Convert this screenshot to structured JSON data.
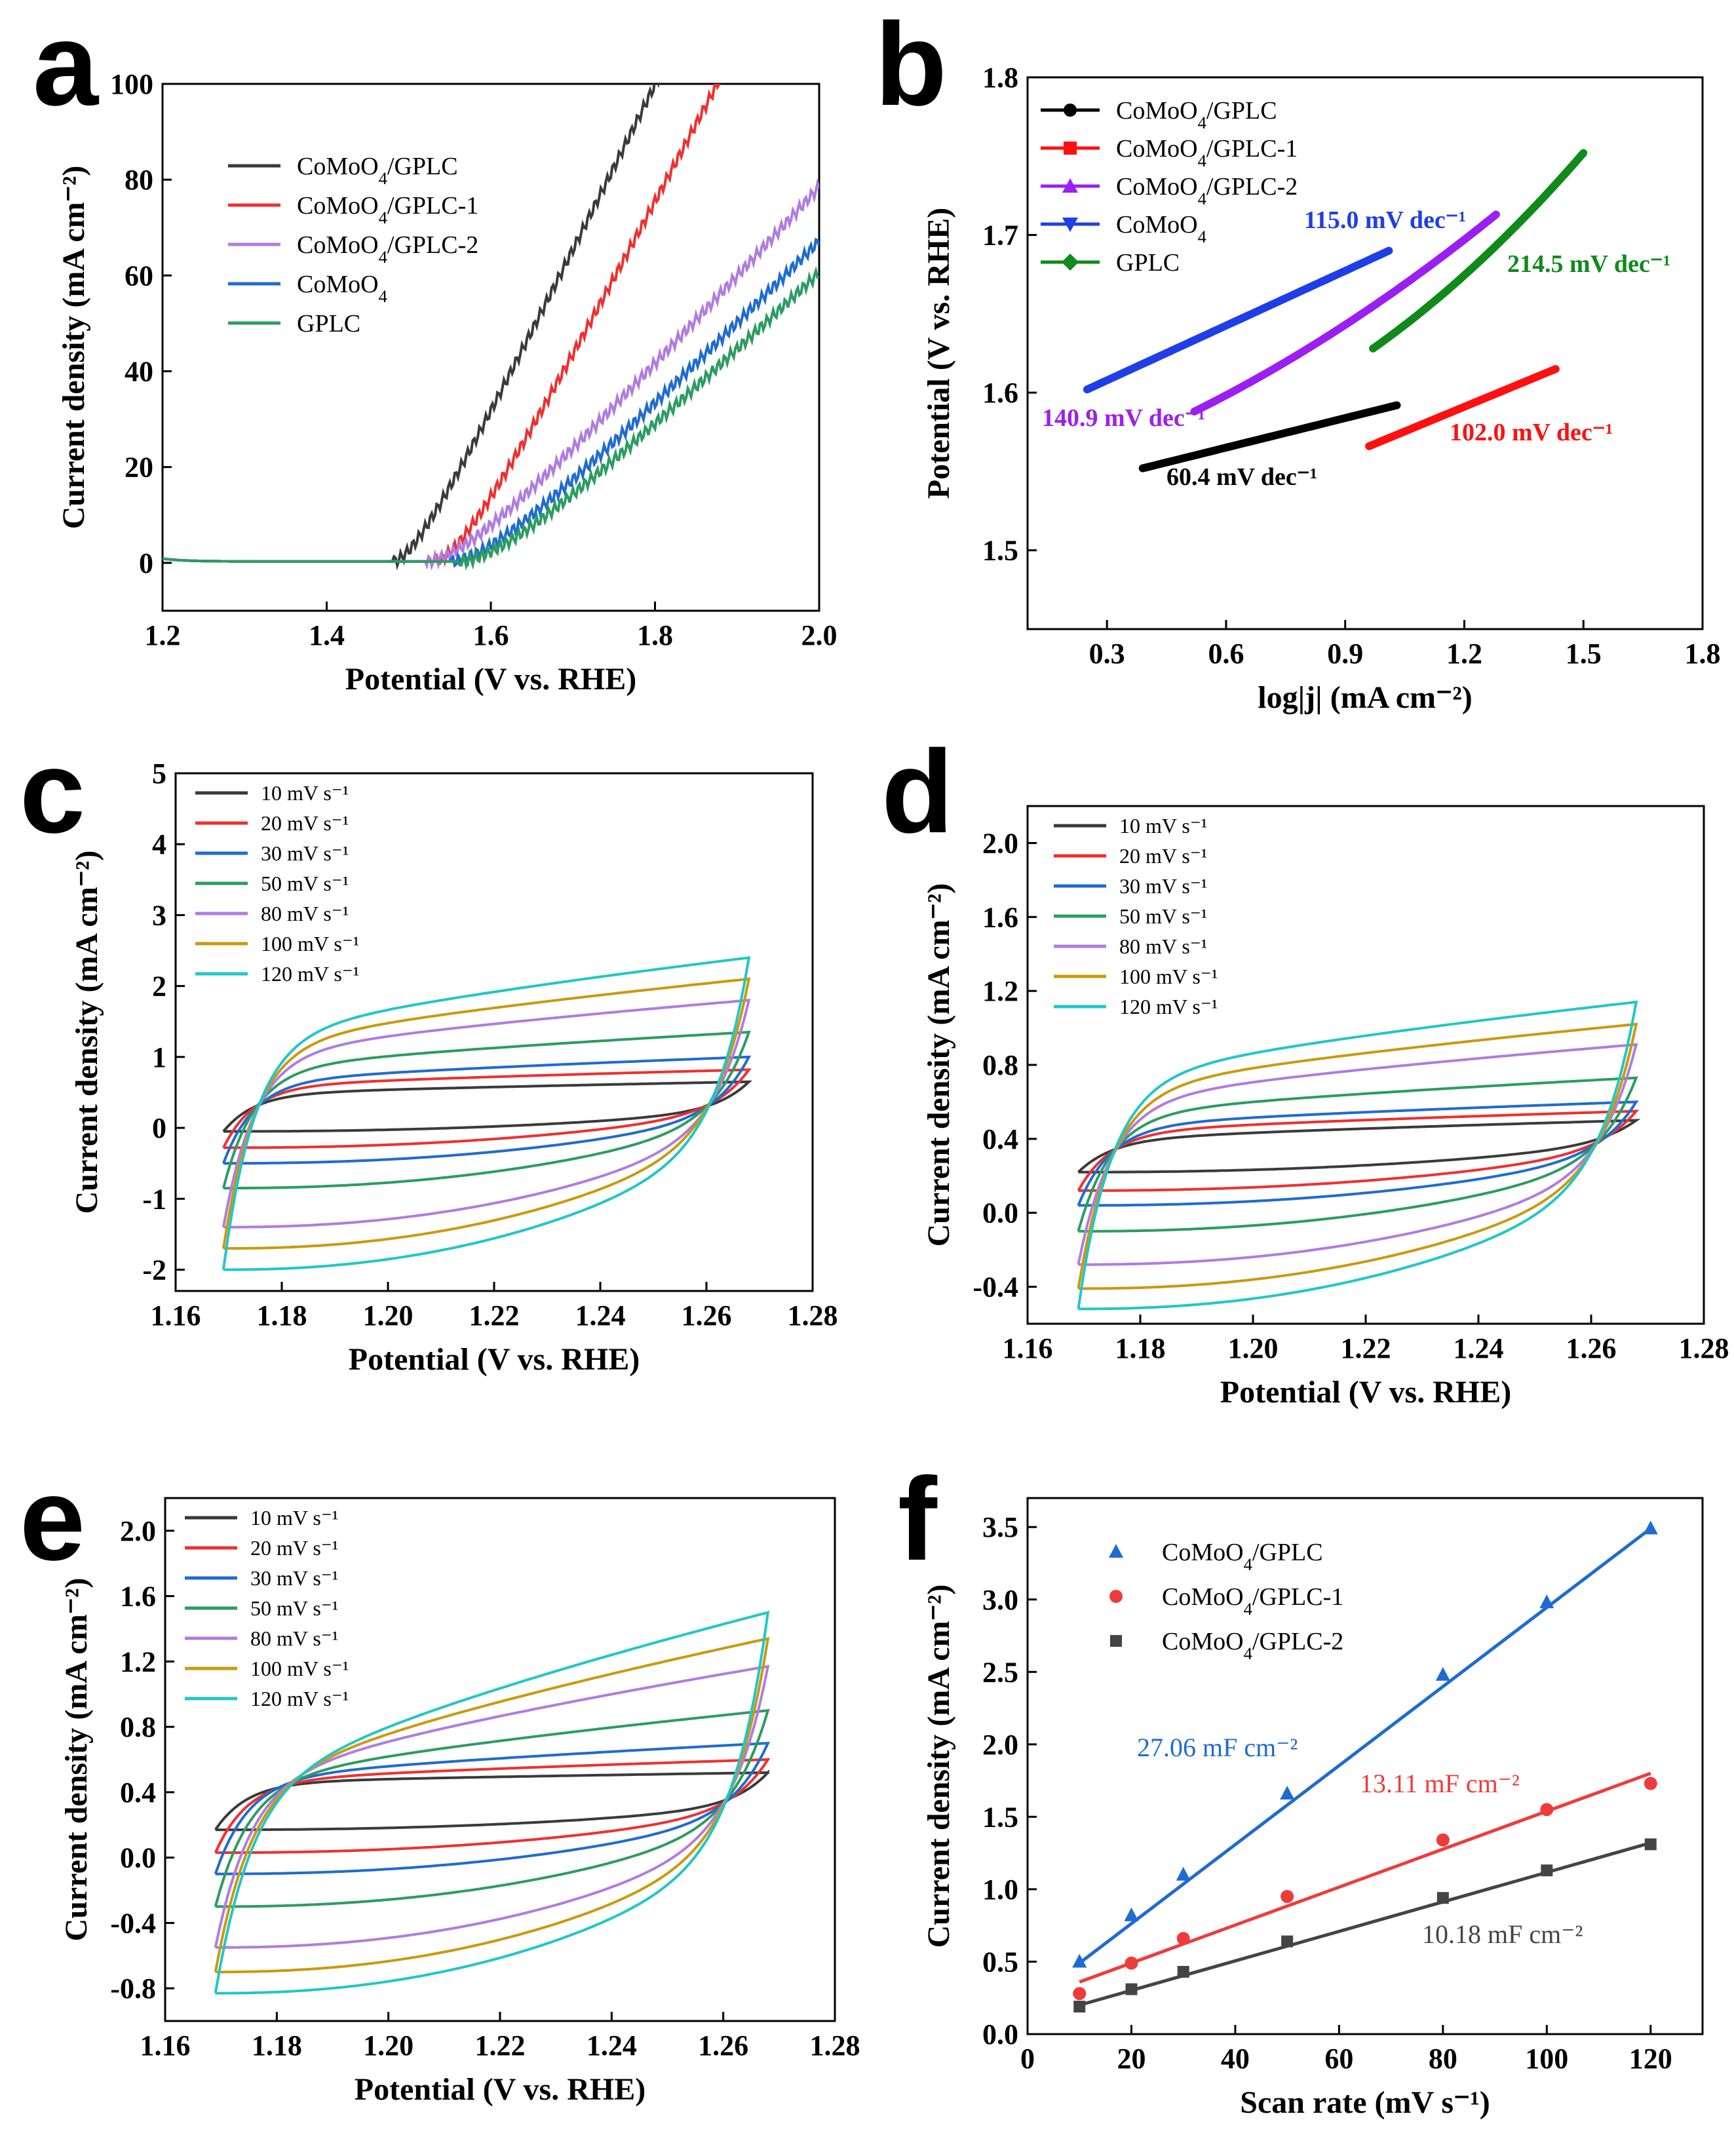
{
  "colors": {
    "black": "#3a3a3a",
    "red": "#ee3030",
    "purple": "#b07ce0",
    "blue": "#1f6bd1",
    "green": "#2c9c62",
    "gold": "#c99a0e",
    "cyan": "#22c6c6",
    "b_black": "#000000",
    "b_red": "#ff1010",
    "b_purple": "#9b1ff2",
    "b_blue": "#1f3ee8",
    "b_green": "#0f8a1b",
    "f_blue": "#1f6bd1",
    "f_red": "#ee3c3c",
    "f_gray": "#444444"
  },
  "chart_data": [
    {
      "panel": "a",
      "type": "line",
      "xlabel": "Potential (V vs. RHE)",
      "ylabel": "Current density (mA cm⁻²)",
      "xlim": [
        1.2,
        2.0
      ],
      "ylim": [
        -10,
        100
      ],
      "xticks": [
        "1.2",
        "1.4",
        "1.6",
        "1.8",
        "2.0"
      ],
      "yticks": [
        "0",
        "20",
        "40",
        "60",
        "80",
        "100"
      ],
      "legend": [
        "CoMoO4/GPLC",
        "CoMoO4/GPLC-1",
        "CoMoO4/GPLC-2",
        "CoMoO4",
        "GPLC"
      ],
      "series": [
        {
          "name": "CoMoO4/GPLC",
          "color": "black",
          "onset": 1.48,
          "slope": 350,
          "curv": 0.04
        },
        {
          "name": "CoMoO4/GPLC-1",
          "color": "red",
          "onset": 1.53,
          "slope": 330,
          "curv": 0.05
        },
        {
          "name": "CoMoO4/GPLC-2",
          "color": "purple",
          "onset": 1.52,
          "slope": 190,
          "curv": 0.08
        },
        {
          "name": "CoMoO4",
          "color": "blue",
          "onset": 1.55,
          "slope": 175,
          "curv": 0.08
        },
        {
          "name": "GPLC",
          "color": "green",
          "onset": 1.56,
          "slope": 165,
          "curv": 0.09
        }
      ]
    },
    {
      "panel": "b",
      "type": "line",
      "xlabel": "log|j| (mA cm⁻²)",
      "ylabel": "Potential (V vs. RHE)",
      "xlim": [
        0.1,
        1.8
      ],
      "ylim": [
        1.45,
        1.8
      ],
      "xticks": [
        "0.3",
        "0.6",
        "0.9",
        "1.2",
        "1.5",
        "1.8"
      ],
      "yticks": [
        "1.5",
        "1.6",
        "1.7",
        "1.8"
      ],
      "legend": [
        "CoMoO4/GPLC",
        "CoMoO4/GPLC-1",
        "CoMoO4/GPLC-2",
        "CoMoO4",
        "GPLC"
      ],
      "series": [
        {
          "name": "CoMoO4/GPLC",
          "color": "b_black",
          "x": [
            0.39,
            1.03
          ],
          "y": [
            1.552,
            1.592
          ],
          "label": "60.4 mV dec⁻¹"
        },
        {
          "name": "CoMoO4/GPLC-1",
          "color": "b_red",
          "x": [
            0.96,
            1.43
          ],
          "y": [
            1.566,
            1.615
          ],
          "label": "102.0 mV dec⁻¹"
        },
        {
          "name": "CoMoO4/GPLC-2",
          "color": "b_purple",
          "x": [
            0.52,
            1.28
          ],
          "y": [
            1.588,
            1.698
          ],
          "label": "140.9 mV dec⁻¹"
        },
        {
          "name": "CoMoO4",
          "color": "b_blue",
          "x": [
            0.25,
            1.01
          ],
          "y": [
            1.602,
            1.69
          ],
          "label": "115.0 mV dec⁻¹"
        },
        {
          "name": "GPLC",
          "color": "b_green",
          "x": [
            0.97,
            1.5
          ],
          "y": [
            1.628,
            1.737
          ],
          "label": "214.5 mV dec⁻¹"
        }
      ]
    },
    {
      "panel": "c",
      "type": "line",
      "xlabel": "Potential (V vs. RHE)",
      "ylabel": "Current density (mA cm⁻²)",
      "xlim": [
        1.16,
        1.28
      ],
      "ylim": [
        -2.3,
        5.0
      ],
      "xticks": [
        "1.16",
        "1.18",
        "1.20",
        "1.22",
        "1.24",
        "1.26",
        "1.28"
      ],
      "yticks": [
        "-2",
        "-1",
        "0",
        "1",
        "2",
        "3",
        "4",
        "5"
      ],
      "legend": [
        "10 mV s⁻¹",
        "20 mV s⁻¹",
        "30 mV s⁻¹",
        "50 mV s⁻¹",
        "80 mV s⁻¹",
        "100 mV s⁻¹",
        "120 mV s⁻¹"
      ],
      "series": [
        {
          "name": "10 mV s⁻¹",
          "color": "black",
          "top": [
            0.45,
            0.65
          ],
          "bot": [
            -0.05,
            0.25
          ],
          "cross": 1.267
        },
        {
          "name": "20 mV s⁻¹",
          "color": "red",
          "top": [
            0.55,
            0.82
          ],
          "bot": [
            -0.28,
            0.25
          ],
          "cross": 1.267
        },
        {
          "name": "30 mV s⁻¹",
          "color": "blue",
          "top": [
            0.6,
            1.0
          ],
          "bot": [
            -0.5,
            0.2
          ],
          "cross": 1.266
        },
        {
          "name": "50 mV s⁻¹",
          "color": "green",
          "top": [
            0.75,
            1.35
          ],
          "bot": [
            -0.85,
            0.15
          ],
          "cross": 1.265
        },
        {
          "name": "80 mV s⁻¹",
          "color": "purple",
          "top": [
            0.9,
            1.8
          ],
          "bot": [
            -1.4,
            0.05
          ],
          "cross": 1.264
        },
        {
          "name": "100 mV s⁻¹",
          "color": "gold",
          "top": [
            1.0,
            2.1
          ],
          "bot": [
            -1.7,
            0.0
          ],
          "cross": 1.264
        },
        {
          "name": "120 mV s⁻¹",
          "color": "cyan",
          "top": [
            1.1,
            2.4
          ],
          "bot": [
            -2.0,
            -0.1
          ],
          "cross": 1.263
        }
      ]
    },
    {
      "panel": "d",
      "type": "line",
      "xlabel": "Potential (V vs. RHE)",
      "ylabel": "Current density (mA cm⁻²)",
      "xlim": [
        1.16,
        1.28
      ],
      "ylim": [
        -0.6,
        2.2
      ],
      "xticks": [
        "1.16",
        "1.18",
        "1.20",
        "1.22",
        "1.24",
        "1.26",
        "1.28"
      ],
      "yticks": [
        "-0.4",
        "0.0",
        "0.4",
        "0.8",
        "1.2",
        "1.6",
        "2.0"
      ],
      "legend": [
        "10 mV s⁻¹",
        "20 mV s⁻¹",
        "30 mV s⁻¹",
        "50 mV s⁻¹",
        "80 mV s⁻¹",
        "100 mV s⁻¹",
        "120 mV s⁻¹"
      ],
      "series": [
        {
          "name": "10 mV s⁻¹",
          "color": "black",
          "top": [
            0.38,
            0.5
          ],
          "bot": [
            0.22,
            0.38
          ],
          "cross": 1.267
        },
        {
          "name": "20 mV s⁻¹",
          "color": "red",
          "top": [
            0.42,
            0.55
          ],
          "bot": [
            0.12,
            0.35
          ],
          "cross": 1.267
        },
        {
          "name": "30 mV s⁻¹",
          "color": "blue",
          "top": [
            0.45,
            0.6
          ],
          "bot": [
            0.04,
            0.33
          ],
          "cross": 1.266
        },
        {
          "name": "50 mV s⁻¹",
          "color": "green",
          "top": [
            0.5,
            0.73
          ],
          "bot": [
            -0.1,
            0.3
          ],
          "cross": 1.265
        },
        {
          "name": "80 mV s⁻¹",
          "color": "purple",
          "top": [
            0.55,
            0.91
          ],
          "bot": [
            -0.28,
            0.25
          ],
          "cross": 1.264
        },
        {
          "name": "100 mV s⁻¹",
          "color": "gold",
          "top": [
            0.6,
            1.02
          ],
          "bot": [
            -0.41,
            0.22
          ],
          "cross": 1.264
        },
        {
          "name": "120 mV s⁻¹",
          "color": "cyan",
          "top": [
            0.65,
            1.14
          ],
          "bot": [
            -0.52,
            0.2
          ],
          "cross": 1.263
        }
      ]
    },
    {
      "panel": "e",
      "type": "line",
      "xlabel": "Potential (V vs. RHE)",
      "ylabel": "Current density (mA cm⁻²)",
      "xlim": [
        1.16,
        1.28
      ],
      "ylim": [
        -1.0,
        2.2
      ],
      "xticks": [
        "1.16",
        "1.18",
        "1.20",
        "1.22",
        "1.24",
        "1.26",
        "1.28"
      ],
      "yticks": [
        "-0.8",
        "-0.4",
        "0.0",
        "0.4",
        "0.8",
        "1.2",
        "1.6",
        "2.0"
      ],
      "legend": [
        "10 mV s⁻¹",
        "20 mV s⁻¹",
        "30 mV s⁻¹",
        "50 mV s⁻¹",
        "80 mV s⁻¹",
        "100 mV s⁻¹",
        "120 mV s⁻¹"
      ],
      "series": [
        {
          "name": "10 mV s⁻¹",
          "color": "black",
          "top": [
            0.45,
            0.52
          ],
          "bot": [
            0.17,
            0.32
          ],
          "cross": 1.266
        },
        {
          "name": "20 mV s⁻¹",
          "color": "red",
          "top": [
            0.45,
            0.6
          ],
          "bot": [
            0.03,
            0.3
          ],
          "cross": 1.265
        },
        {
          "name": "30 mV s⁻¹",
          "color": "blue",
          "top": [
            0.45,
            0.7
          ],
          "bot": [
            -0.1,
            0.28
          ],
          "cross": 1.264
        },
        {
          "name": "50 mV s⁻¹",
          "color": "green",
          "top": [
            0.4,
            0.9
          ],
          "bot": [
            -0.3,
            0.25
          ],
          "cross": 1.262
        },
        {
          "name": "80 mV s⁻¹",
          "color": "purple",
          "top": [
            0.35,
            1.17
          ],
          "bot": [
            -0.55,
            0.2
          ],
          "cross": 1.26
        },
        {
          "name": "100 mV s⁻¹",
          "color": "gold",
          "top": [
            0.3,
            1.34
          ],
          "bot": [
            -0.7,
            0.15
          ],
          "cross": 1.259
        },
        {
          "name": "120 mV s⁻¹",
          "color": "cyan",
          "top": [
            0.25,
            1.5
          ],
          "bot": [
            -0.83,
            0.1
          ],
          "cross": 1.258
        }
      ]
    },
    {
      "panel": "f",
      "type": "scatter",
      "xlabel": "Scan rate (mV s⁻¹)",
      "ylabel": "Current density (mA cm⁻²)",
      "xlim": [
        0,
        130
      ],
      "ylim": [
        0,
        3.7
      ],
      "xticks": [
        "0",
        "20",
        "40",
        "60",
        "80",
        "100",
        "120"
      ],
      "yticks": [
        "0.0",
        "0.5",
        "1.0",
        "1.5",
        "2.0",
        "2.5",
        "3.0",
        "3.5"
      ],
      "legend": [
        "CoMoO4/GPLC",
        "CoMoO4/GPLC-1",
        "CoMoO4/GPLC-2"
      ],
      "x": [
        10,
        20,
        30,
        50,
        80,
        100,
        120
      ],
      "series": [
        {
          "name": "CoMoO4/GPLC",
          "color": "f_blue",
          "marker": "triangle",
          "values": [
            0.5,
            0.82,
            1.1,
            1.66,
            2.48,
            2.98,
            3.49
          ],
          "fit": [
            0.49,
            3.49
          ],
          "label": "27.06 mF cm⁻²"
        },
        {
          "name": "CoMoO4/GPLC-1",
          "color": "f_red",
          "marker": "circle",
          "values": [
            0.28,
            0.49,
            0.66,
            0.95,
            1.34,
            1.55,
            1.73
          ],
          "fit": [
            0.36,
            1.8
          ],
          "label": "13.11 mF cm⁻²"
        },
        {
          "name": "CoMoO4/GPLC-2",
          "color": "f_gray",
          "marker": "square",
          "values": [
            0.19,
            0.31,
            0.43,
            0.64,
            0.94,
            1.13,
            1.31
          ],
          "fit": [
            0.2,
            1.32
          ],
          "label": "10.18 mF cm⁻²"
        }
      ]
    }
  ]
}
